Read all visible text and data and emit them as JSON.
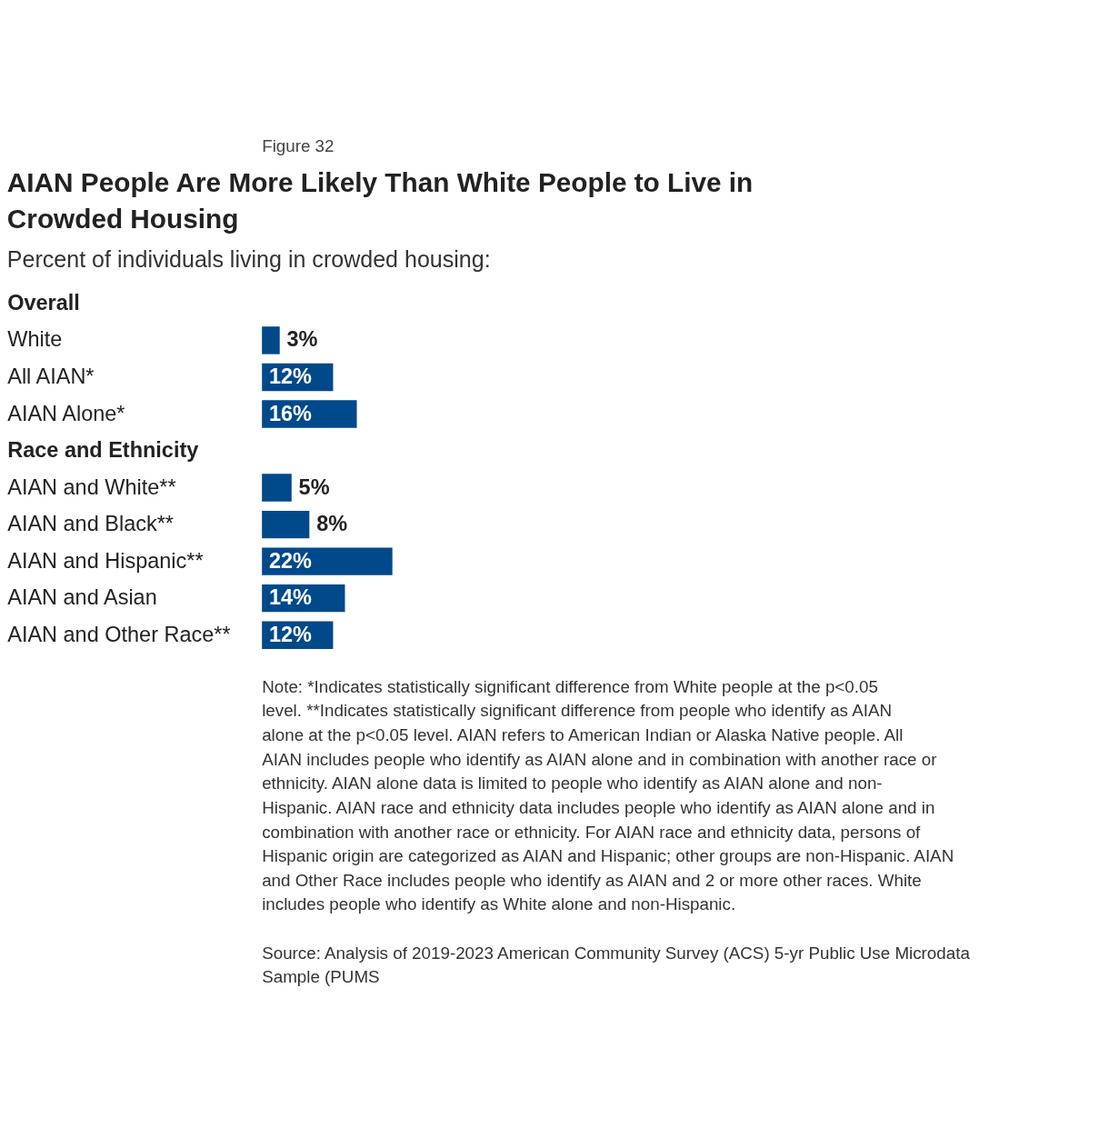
{
  "chart_data": {
    "type": "bar",
    "orientation": "horizontal",
    "title": "AIAN People Are More Likely Than White People to Live in Crowded Housing",
    "subtitle": "Percent of individuals living in crowded housing:",
    "categories": [
      "Overall",
      "White",
      "All AIAN*",
      "AIAN Alone*",
      "Race and Ethnicity",
      "AIAN and White**",
      "AIAN and Black**",
      "AIAN and Hispanic**",
      "AIAN and Asian",
      "AIAN and Other Race**"
    ],
    "values": [
      null,
      3,
      12,
      16,
      null,
      5,
      8,
      22,
      14,
      12
    ],
    "value_labels": [
      null,
      "3%",
      "12%",
      "16%",
      null,
      "5%",
      "8%",
      "22%",
      "14%",
      "12%"
    ],
    "color": "#00498a",
    "annotations": [
      "Figure 32",
      "Note: *Indicates statistically significant difference from White people at the p<0.05 level. **Indicates statistically significant difference from people who identify as AIAN alone at the p<0.05 level. AIAN refers to American Indian or Alaska Native people. All AIAN includes people who identify as AIAN alone and in combination with another race or ethnicity. AIAN alone data is limited to people who identify as AIAN alone and non-Hispanic. AIAN race and ethnicity data includes people who identify as AIAN alone and in combination with another race or ethnicity. For AIAN race and ethnicity data, persons of Hispanic origin are categorized as AIAN and Hispanic; other groups are non-Hispanic. AIAN and Other Race includes people who identify as AIAN and 2 or more other races. White includes people who identify as White alone and non-Hispanic.",
      "Source: Analysis of 2019-2023 American Community Survey (ACS) 5-yr Public Use Microdata Sample (PUMS"
    ]
  }
}
